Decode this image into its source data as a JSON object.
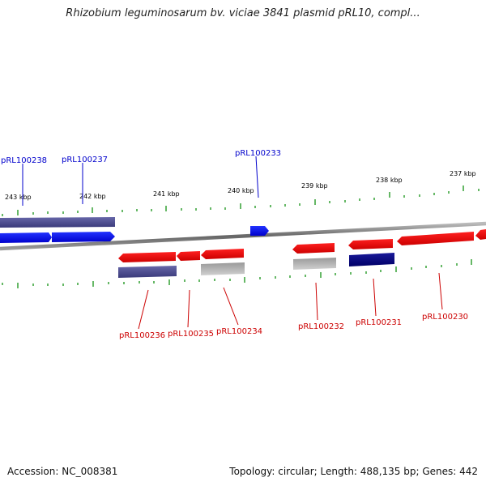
{
  "title": "Rhizobium leguminosarum bv. viciae 3841 plasmid pRL10, compl...",
  "footer": {
    "accession": "Accession: NC_008381",
    "topology": "Topology: circular; Length: 488,135 bp; Genes: 442"
  },
  "ticks": [
    "243 kbp",
    "242 kbp",
    "241 kbp",
    "240 kbp",
    "239 kbp",
    "238 kbp",
    "237 kbp"
  ],
  "genes_top": [
    "pRL100238",
    "pRL100237",
    "pRL100233"
  ],
  "genes_bottom": [
    "pRL100236",
    "pRL100235",
    "pRL100234",
    "pRL100232",
    "pRL100231",
    "pRL100230"
  ],
  "colors": {
    "forward_strand": "#0000ee",
    "reverse_strand": "#ee0000",
    "backbone": "#888888",
    "tick": "#008800",
    "cds_dark": "#4a4a8c",
    "cds_navy": "#000080",
    "cds_grey": "#b0b0b0"
  }
}
